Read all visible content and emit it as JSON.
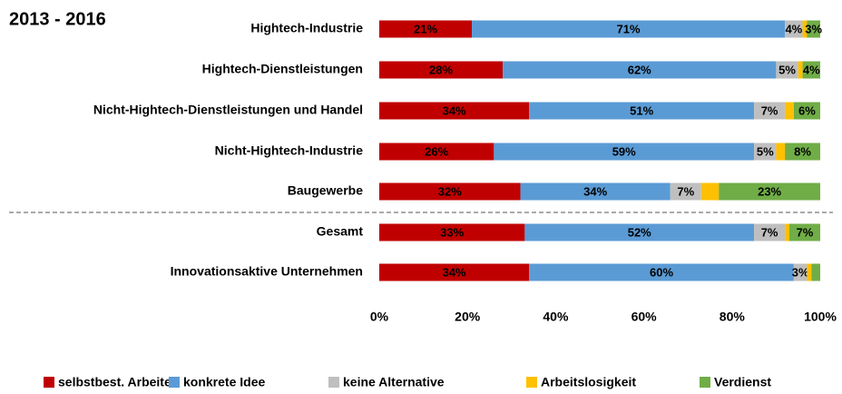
{
  "chart_data": {
    "type": "stacked-barh",
    "title": "2013 - 2016",
    "categories": [
      "Hightech-Industrie",
      "Hightech-Dienstleistungen",
      "Nicht-Hightech-Dienstleistungen und Handel",
      "Nicht-Hightech-Industrie",
      "Baugewerbe",
      "Gesamt",
      "Innovationsaktive Unternehmen"
    ],
    "series": [
      {
        "name": "selbstbest. Arbeiten",
        "color": "#c00000",
        "values": [
          21,
          28,
          34,
          26,
          32,
          33,
          34
        ],
        "value_labels": [
          "21%",
          "28%",
          "34%",
          "26%",
          "32%",
          "33%",
          "34%"
        ]
      },
      {
        "name": "konkrete Idee",
        "color": "#5b9bd5",
        "values": [
          71,
          62,
          51,
          59,
          34,
          52,
          60
        ],
        "value_labels": [
          "71%",
          "62%",
          "51%",
          "59%",
          "34%",
          "52%",
          "60%"
        ]
      },
      {
        "name": "keine Alternative",
        "color": "#bfbfbf",
        "values": [
          4,
          5,
          7,
          5,
          7,
          7,
          3
        ],
        "value_labels": [
          "4%",
          "5%",
          "7%",
          "5%",
          "7%",
          "7%",
          "3%"
        ]
      },
      {
        "name": "Arbeitslosigkeit",
        "color": "#ffc000",
        "values": [
          1,
          1,
          2,
          2,
          4,
          1,
          1
        ],
        "value_labels": [
          null,
          null,
          null,
          null,
          null,
          null,
          null
        ]
      },
      {
        "name": "Verdienst",
        "color": "#70ad47",
        "values": [
          3,
          4,
          6,
          8,
          23,
          7,
          2
        ],
        "value_labels": [
          "3%",
          "4%",
          "6%",
          "8%",
          "23%",
          "7%",
          null
        ]
      }
    ],
    "xlim": [
      0,
      100
    ],
    "xticks": [
      {
        "value": 0,
        "label": "0%"
      },
      {
        "value": 20,
        "label": "20%"
      },
      {
        "value": 40,
        "label": "40%"
      },
      {
        "value": 60,
        "label": "60%"
      },
      {
        "value": 80,
        "label": "80%"
      },
      {
        "value": 100,
        "label": "100%"
      }
    ],
    "legend": "bottom"
  }
}
